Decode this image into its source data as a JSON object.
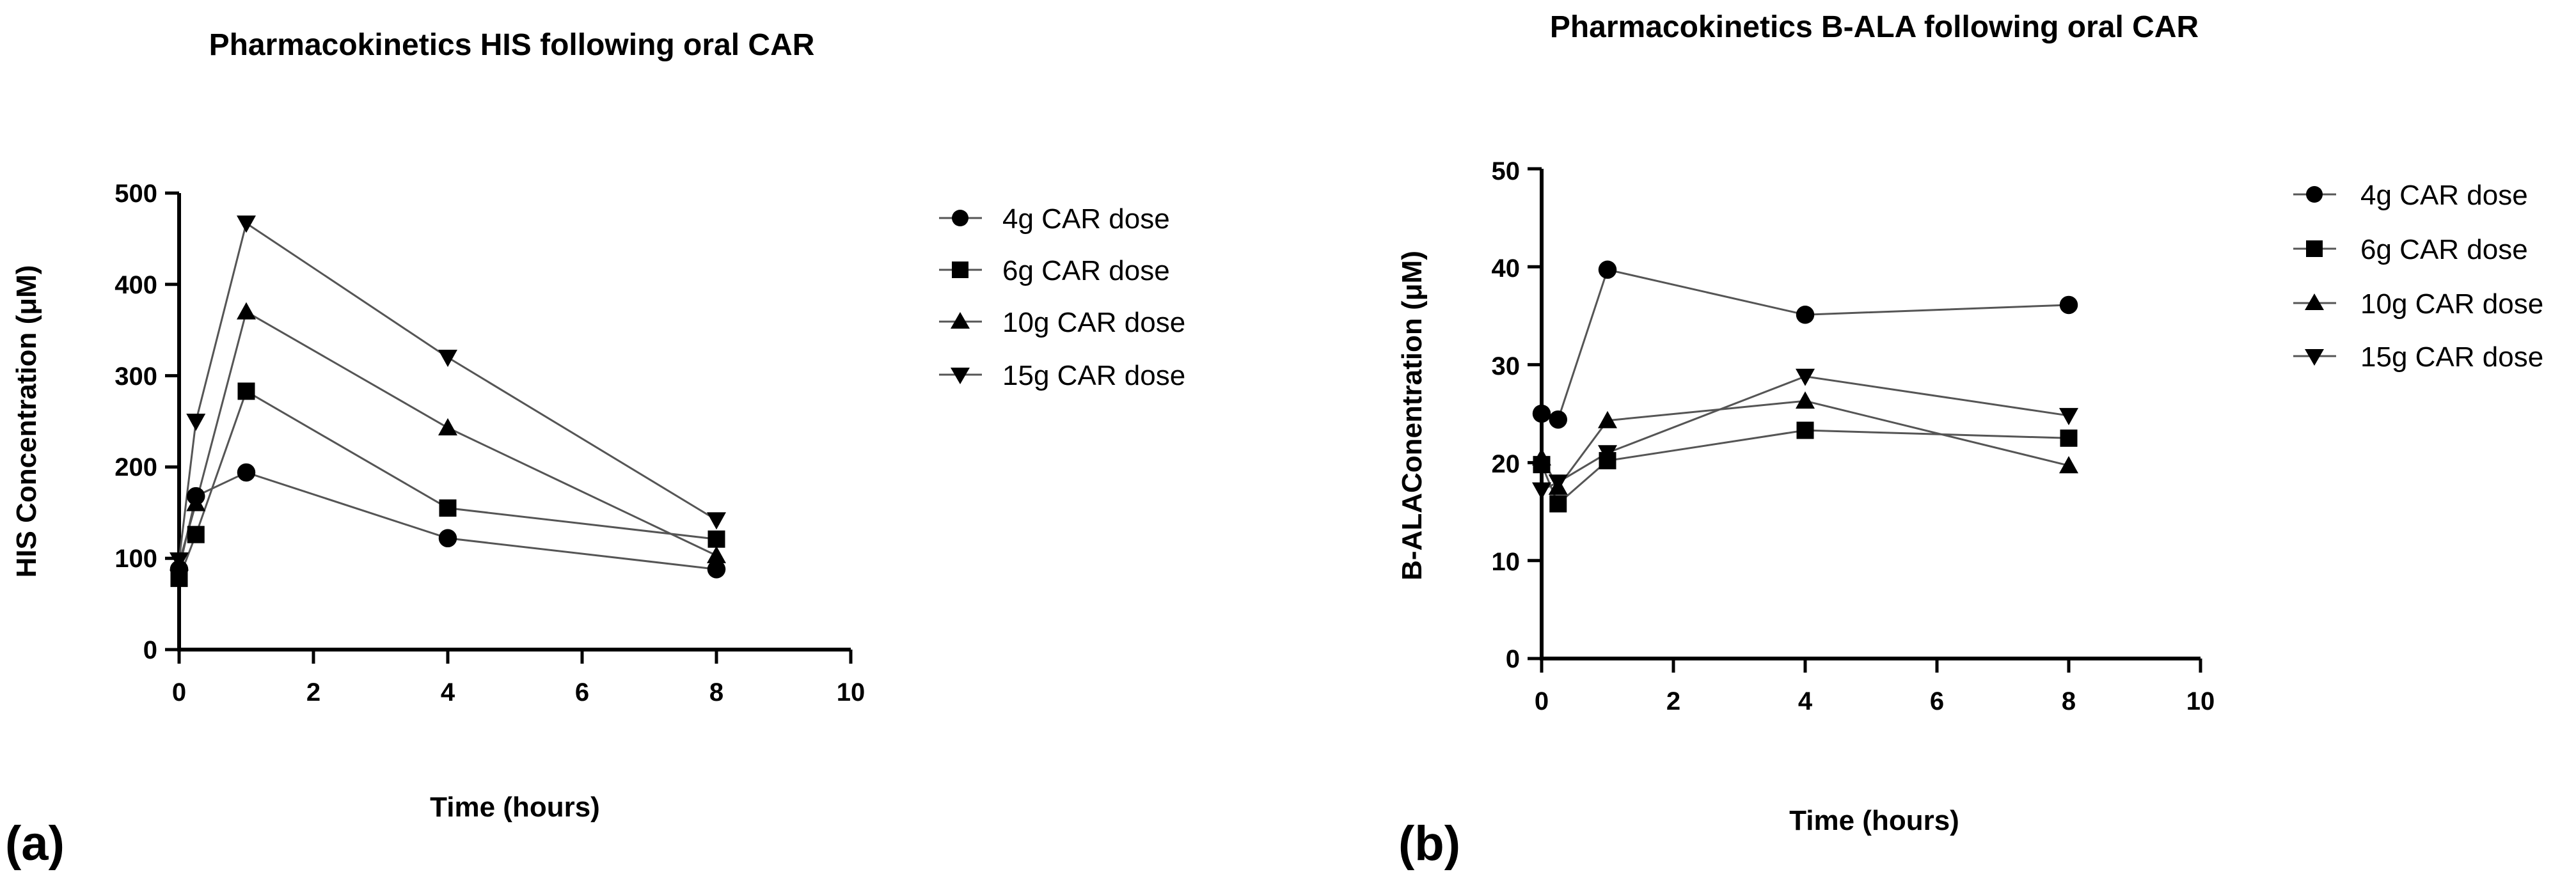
{
  "chart_data": [
    {
      "type": "line",
      "panel_label": "(a)",
      "title": "Pharmacokinetics HIS following oral  CAR",
      "xlabel": "Time (hours)",
      "ylabel": "HIS Concentration (μM)",
      "xlim": [
        0,
        10
      ],
      "ylim": [
        0,
        500
      ],
      "xticks": [
        0,
        2,
        4,
        6,
        8,
        10
      ],
      "yticks": [
        0,
        100,
        200,
        300,
        400,
        500
      ],
      "legend_position": "right",
      "x": [
        0,
        0.25,
        1,
        4,
        8
      ],
      "series": [
        {
          "name": "4g CAR dose",
          "marker": "circle",
          "values": [
            88,
            168,
            194,
            122,
            88
          ]
        },
        {
          "name": "6g CAR dose",
          "marker": "square",
          "values": [
            78,
            126,
            283,
            155,
            121
          ]
        },
        {
          "name": "10g CAR dose",
          "marker": "triangle-up",
          "values": [
            95,
            160,
            370,
            243,
            103
          ]
        },
        {
          "name": "15g CAR dose",
          "marker": "triangle-down",
          "values": [
            98,
            250,
            467,
            320,
            142
          ]
        }
      ]
    },
    {
      "type": "line",
      "panel_label": "(b)",
      "title": "Pharmacokinetics B-ALA following oral CAR",
      "xlabel": "Time (hours)",
      "ylabel": "B-ALAConentration (μM)",
      "xlim": [
        0,
        10
      ],
      "ylim": [
        0,
        50
      ],
      "xticks": [
        0,
        2,
        4,
        6,
        8,
        10
      ],
      "yticks": [
        0,
        10,
        20,
        30,
        40,
        50
      ],
      "legend_position": "right",
      "x": [
        0,
        0.25,
        1,
        4,
        8
      ],
      "series": [
        {
          "name": "4g CAR dose",
          "marker": "circle",
          "values": [
            25.0,
            24.4,
            39.7,
            35.1,
            36.1
          ]
        },
        {
          "name": "6g CAR dose",
          "marker": "square",
          "values": [
            19.8,
            15.8,
            20.2,
            23.3,
            22.5
          ]
        },
        {
          "name": "10g CAR dose",
          "marker": "triangle-up",
          "values": [
            20.5,
            17.5,
            24.3,
            26.3,
            19.7
          ]
        },
        {
          "name": "15g CAR dose",
          "marker": "triangle-down",
          "values": [
            17.2,
            18.0,
            21.0,
            28.8,
            24.8
          ]
        }
      ]
    }
  ]
}
